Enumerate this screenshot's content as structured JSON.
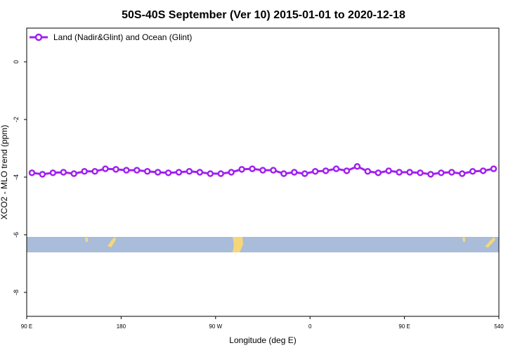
{
  "chart_data": {
    "type": "line",
    "title": "50S-40S September (Ver 10)   2015-01-01 to 2020-12-18",
    "x_label": "Longitude (deg E)",
    "y_label": "XCO2 - MLO trend (ppm)",
    "xlim": [
      90,
      540
    ],
    "xticks": [
      {
        "value": 90,
        "label": "90 E"
      },
      180,
      {
        "value": 270,
        "label": "90 W"
      },
      {
        "value": 360,
        "label": "0"
      },
      {
        "value": 450,
        "label": "90 E"
      },
      540
    ],
    "ylim": [
      -8.83,
      1.17
    ],
    "yticks": [
      0,
      -2,
      -4,
      -6,
      -8
    ],
    "legend_position": "top-left",
    "x": [
      95,
      105,
      115,
      125,
      135,
      145,
      155,
      165,
      175,
      185,
      195,
      205,
      215,
      225,
      235,
      245,
      255,
      265,
      275,
      285,
      295,
      305,
      315,
      325,
      335,
      345,
      355,
      365,
      375,
      385,
      395,
      405,
      415,
      425,
      435,
      445,
      455,
      465,
      475,
      485,
      495,
      505,
      515,
      525,
      535
    ],
    "series": [
      {
        "name": "Land (Nadir&Glint) and Ocean (Glint)",
        "color": "#a020f0",
        "values": [
          -3.85,
          -3.9,
          -3.85,
          -3.83,
          -3.88,
          -3.8,
          -3.8,
          -3.71,
          -3.73,
          -3.76,
          -3.76,
          -3.8,
          -3.83,
          -3.85,
          -3.83,
          -3.8,
          -3.83,
          -3.88,
          -3.88,
          -3.83,
          -3.73,
          -3.71,
          -3.76,
          -3.76,
          -3.88,
          -3.83,
          -3.88,
          -3.8,
          -3.78,
          -3.71,
          -3.78,
          -3.63,
          -3.8,
          -3.85,
          -3.78,
          -3.83,
          -3.83,
          -3.85,
          -3.9,
          -3.85,
          -3.83,
          -3.88,
          -3.8,
          -3.78,
          -3.71
        ]
      }
    ]
  }
}
